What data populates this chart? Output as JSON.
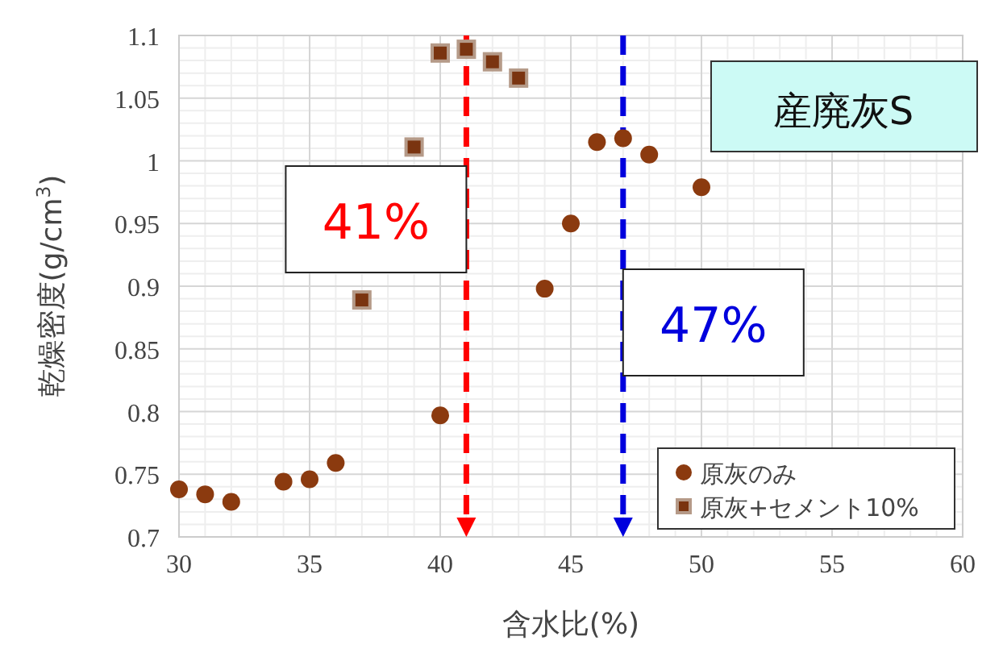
{
  "chart_data": {
    "type": "scatter",
    "xlabel": "含水比(%)",
    "ylabel": "乾燥密度(g/cm$^{3}$)",
    "annotations": [
      "産廃灰S"
    ],
    "xlim": [
      30,
      60
    ],
    "xticks": [
      30,
      35,
      40,
      45,
      50,
      55,
      60
    ],
    "ylim": [
      0.7,
      1.1
    ],
    "yticks": [
      {
        "value": 0.7,
        "label": "0.7"
      },
      {
        "value": 0.75,
        "label": "0.75"
      },
      {
        "value": 0.8,
        "label": "0.8"
      },
      {
        "value": 0.85,
        "label": "0.85"
      },
      {
        "value": 0.9,
        "label": "0.9"
      },
      {
        "value": 0.95,
        "label": "0.95"
      },
      {
        "value": 1,
        "label": "1"
      },
      {
        "value": 1.05,
        "label": "1.05"
      },
      {
        "value": 1.1,
        "label": "1.1"
      }
    ],
    "grid": true,
    "legend": "bottom right",
    "series": [
      {
        "name": "原灰のみ",
        "color": "#8b3a0f",
        "marker": "circle",
        "x": [
          30,
          31,
          32,
          34,
          35,
          36,
          40,
          44,
          45,
          46,
          47,
          48,
          50
        ],
        "values": [
          0.738,
          0.734,
          0.728,
          0.744,
          0.746,
          0.759,
          0.797,
          0.898,
          0.95,
          1.015,
          1.018,
          1.005,
          0.979
        ]
      },
      {
        "name": "原灰+セメント10%",
        "color": "#7a3410",
        "marker": "square",
        "x": [
          37,
          39,
          40,
          41,
          42,
          43
        ],
        "values": [
          0.889,
          1.011,
          1.086,
          1.089,
          1.079,
          1.066
        ]
      }
    ],
    "ref_lines": [
      {
        "axis": "x",
        "value": 41,
        "label": "41%",
        "color": "#ff0000",
        "line_style": "dashed"
      },
      {
        "axis": "x",
        "value": 47,
        "label": "47%",
        "color": "#0000dd",
        "line_style": "dashed"
      }
    ]
  }
}
